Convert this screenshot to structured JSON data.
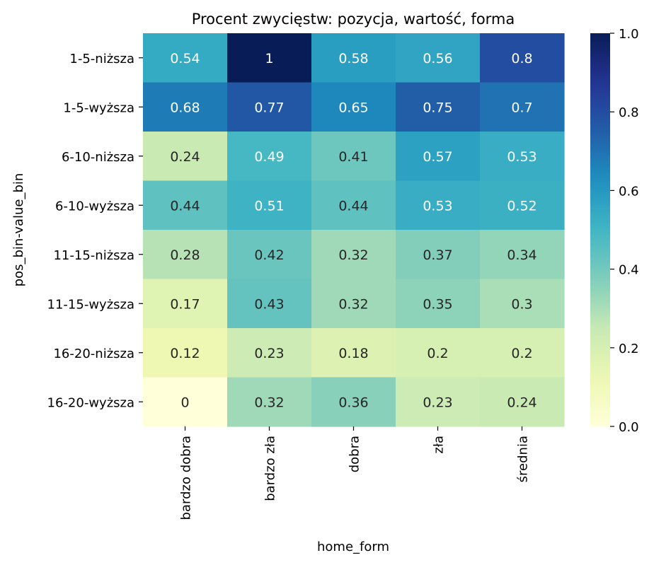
{
  "chart_data": {
    "type": "heatmap",
    "title": "Procent zwycięstw: pozycja, wartość, forma",
    "xlabel": "home_form",
    "ylabel": "pos_bin-value_bin",
    "x_categories": [
      "bardzo dobra",
      "bardzo zła",
      "dobra",
      "zła",
      "średnia"
    ],
    "y_categories": [
      "1-5-niższa",
      "1-5-wyższa",
      "6-10-niższa",
      "6-10-wyższa",
      "11-15-niższa",
      "11-15-wyższa",
      "16-20-niższa",
      "16-20-wyższa"
    ],
    "value_labels": [
      [
        "0.54",
        "1",
        "0.58",
        "0.56",
        "0.8"
      ],
      [
        "0.68",
        "0.77",
        "0.65",
        "0.75",
        "0.7"
      ],
      [
        "0.24",
        "0.49",
        "0.41",
        "0.57",
        "0.53"
      ],
      [
        "0.44",
        "0.51",
        "0.44",
        "0.53",
        "0.52"
      ],
      [
        "0.28",
        "0.42",
        "0.32",
        "0.37",
        "0.34"
      ],
      [
        "0.17",
        "0.43",
        "0.32",
        "0.35",
        "0.3"
      ],
      [
        "0.12",
        "0.23",
        "0.18",
        "0.2",
        "0.2"
      ],
      [
        "0",
        "0.32",
        "0.36",
        "0.23",
        "0.24"
      ]
    ],
    "values": [
      [
        0.54,
        1.0,
        0.58,
        0.56,
        0.8
      ],
      [
        0.68,
        0.77,
        0.65,
        0.75,
        0.7
      ],
      [
        0.24,
        0.49,
        0.41,
        0.57,
        0.53
      ],
      [
        0.44,
        0.51,
        0.44,
        0.53,
        0.52
      ],
      [
        0.28,
        0.42,
        0.32,
        0.37,
        0.34
      ],
      [
        0.17,
        0.43,
        0.32,
        0.35,
        0.3
      ],
      [
        0.12,
        0.23,
        0.18,
        0.2,
        0.2
      ],
      [
        0.0,
        0.32,
        0.36,
        0.23,
        0.24
      ]
    ],
    "colormap": "YlGnBu",
    "vmin": 0.0,
    "vmax": 1.0,
    "colorbar_ticks": [
      "0.0",
      "0.2",
      "0.4",
      "0.6",
      "0.8",
      "1.0"
    ],
    "annotation_colors": {
      "dark": "#262626",
      "light": "#ffffff"
    }
  }
}
